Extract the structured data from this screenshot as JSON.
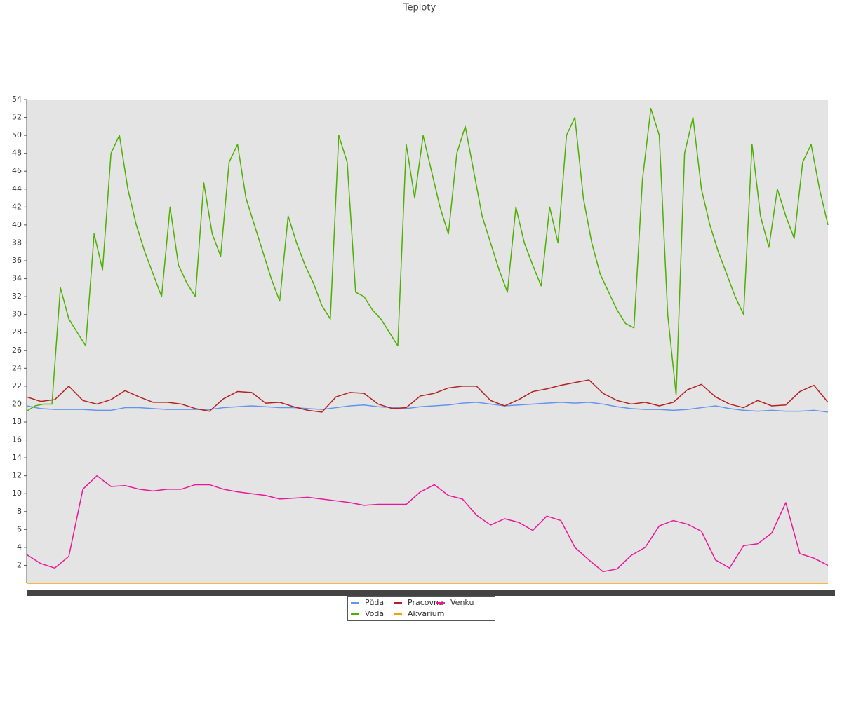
{
  "chart_data": {
    "type": "line",
    "title": "Teploty",
    "ylim": [
      0,
      54
    ],
    "yticks": [
      2,
      4,
      6,
      8,
      10,
      12,
      14,
      16,
      18,
      20,
      22,
      24,
      26,
      28,
      30,
      32,
      34,
      36,
      38,
      40,
      42,
      44,
      46,
      48,
      50,
      52,
      54
    ],
    "legend": "bottom",
    "series": [
      {
        "name": "Půda",
        "color": "#6495ed",
        "values": [
          19.8,
          19.5,
          19.4,
          19.4,
          19.4,
          19.3,
          19.3,
          19.6,
          19.6,
          19.5,
          19.4,
          19.4,
          19.4,
          19.4,
          19.6,
          19.7,
          19.8,
          19.7,
          19.6,
          19.6,
          19.5,
          19.4,
          19.6,
          19.8,
          19.9,
          19.7,
          19.6,
          19.5,
          19.7,
          19.8,
          19.9,
          20.1,
          20.2,
          20.0,
          19.8,
          19.9,
          20.0,
          20.1,
          20.2,
          20.1,
          20.2,
          20.0,
          19.7,
          19.5,
          19.4,
          19.4,
          19.3,
          19.4,
          19.6,
          19.8,
          19.5,
          19.3,
          19.2,
          19.3,
          19.2,
          19.2,
          19.3,
          19.1
        ]
      },
      {
        "name": "Voda",
        "color": "#4cb000",
        "values": [
          19.2,
          19.8,
          20,
          20,
          33,
          29.5,
          28,
          26.5,
          39,
          35,
          48,
          50,
          44,
          40,
          37,
          34.5,
          32,
          42,
          35.5,
          33.5,
          32,
          44.7,
          39,
          36.5,
          47,
          49,
          43,
          40,
          37,
          34,
          31.5,
          41,
          38,
          35.5,
          33.5,
          31,
          29.5,
          50,
          47,
          32.5,
          32,
          30.5,
          29.5,
          28,
          26.5,
          49,
          43,
          50,
          46,
          42,
          39,
          48,
          51,
          46,
          41,
          38,
          35,
          32.5,
          42,
          38,
          35.5,
          33.2,
          42,
          38,
          50,
          52,
          43,
          38,
          34.5,
          32.5,
          30.5,
          29,
          28.5,
          45,
          53,
          50,
          30,
          21,
          48,
          52,
          44,
          40,
          37,
          34.5,
          32,
          30,
          49,
          41,
          37.5,
          44,
          41,
          38.5,
          47,
          49,
          44,
          40
        ]
      },
      {
        "name": "Pracovna",
        "color": "#b22222",
        "values": [
          20.8,
          20.3,
          20.5,
          22,
          20.4,
          20.0,
          20.5,
          21.5,
          20.8,
          20.2,
          20.2,
          20.0,
          19.5,
          19.2,
          20.6,
          21.4,
          21.3,
          20.1,
          20.2,
          19.7,
          19.3,
          19.1,
          20.8,
          21.3,
          21.2,
          20.0,
          19.5,
          19.6,
          20.9,
          21.2,
          21.8,
          22.0,
          22.0,
          20.4,
          19.8,
          20.5,
          21.4,
          21.7,
          22.1,
          22.4,
          22.7,
          21.2,
          20.4,
          20.0,
          20.2,
          19.8,
          20.2,
          21.6,
          22.2,
          20.8,
          20.0,
          19.6,
          20.4,
          19.8,
          19.9,
          21.4,
          22.1,
          20.2
        ]
      },
      {
        "name": "Akvarium",
        "color": "#f0a000",
        "values": [
          0,
          0
        ]
      },
      {
        "name": "Venku",
        "color": "#e8189a",
        "values": [
          3.2,
          2.2,
          1.7,
          3.0,
          10.5,
          12.0,
          10.8,
          10.9,
          10.5,
          10.3,
          10.5,
          10.5,
          11.0,
          11.0,
          10.5,
          10.2,
          10.0,
          9.8,
          9.4,
          9.5,
          9.6,
          9.4,
          9.2,
          9.0,
          8.7,
          8.8,
          8.8,
          8.8,
          10.2,
          11.0,
          9.8,
          9.4,
          7.6,
          6.5,
          7.2,
          6.8,
          5.9,
          7.5,
          7.0,
          4.0,
          2.6,
          1.3,
          1.6,
          3.1,
          4.0,
          6.4,
          7.0,
          6.6,
          5.8,
          2.6,
          1.7,
          4.2,
          4.4,
          5.6,
          9.0,
          3.3,
          2.8,
          2.0
        ]
      }
    ]
  }
}
